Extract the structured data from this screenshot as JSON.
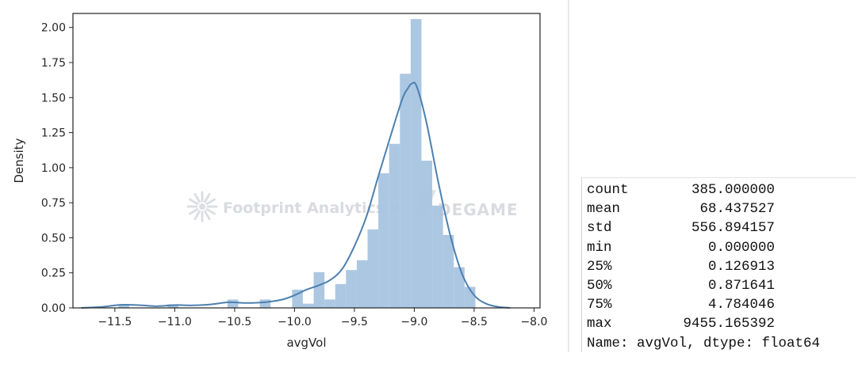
{
  "watermark": {
    "brand": "Footprint Analytics",
    "separator": "×",
    "partner": "DEGAME"
  },
  "chart_data": {
    "type": "histogram",
    "xlabel": "avgVol",
    "ylabel": "Density",
    "xlim": [
      -11.85,
      -7.95
    ],
    "ylim": [
      0,
      2.1
    ],
    "xticks": [
      -11.5,
      -11.0,
      -10.5,
      -10.0,
      -9.5,
      -9.0,
      -8.5,
      -8.0
    ],
    "xtick_labels": [
      "−11.5",
      "−11.0",
      "−10.5",
      "−10.0",
      "−9.5",
      "−9.0",
      "−8.5",
      "−8.0"
    ],
    "yticks": [
      0,
      0.25,
      0.5,
      0.75,
      1.0,
      1.25,
      1.5,
      1.75,
      2.0
    ],
    "ytick_labels": [
      "0.00",
      "0.25",
      "0.50",
      "0.75",
      "1.00",
      "1.25",
      "1.50",
      "1.75",
      "2.00"
    ],
    "grid": false,
    "bar_color": "#a8c4e0",
    "line_color": "#4c80b0",
    "bins": [
      {
        "x0": -11.47,
        "x1": -11.38,
        "density": 0.026
      },
      {
        "x0": -11.06,
        "x1": -10.97,
        "density": 0.026
      },
      {
        "x0": -10.56,
        "x1": -10.47,
        "density": 0.06
      },
      {
        "x0": -10.47,
        "x1": -10.38,
        "density": 0.0
      },
      {
        "x0": -10.38,
        "x1": -10.29,
        "density": 0.0
      },
      {
        "x0": -10.29,
        "x1": -10.2,
        "density": 0.06
      },
      {
        "x0": -10.2,
        "x1": -10.11,
        "density": 0.0
      },
      {
        "x0": -10.11,
        "x1": -10.02,
        "density": 0.0
      },
      {
        "x0": -10.02,
        "x1": -9.93,
        "density": 0.13
      },
      {
        "x0": -9.93,
        "x1": -9.84,
        "density": 0.03
      },
      {
        "x0": -9.84,
        "x1": -9.75,
        "density": 0.255
      },
      {
        "x0": -9.75,
        "x1": -9.66,
        "density": 0.06
      },
      {
        "x0": -9.66,
        "x1": -9.57,
        "density": 0.17
      },
      {
        "x0": -9.57,
        "x1": -9.48,
        "density": 0.27
      },
      {
        "x0": -9.48,
        "x1": -9.39,
        "density": 0.34
      },
      {
        "x0": -9.39,
        "x1": -9.3,
        "density": 0.56
      },
      {
        "x0": -9.3,
        "x1": -9.21,
        "density": 0.96
      },
      {
        "x0": -9.21,
        "x1": -9.12,
        "density": 1.17
      },
      {
        "x0": -9.12,
        "x1": -9.03,
        "density": 1.67
      },
      {
        "x0": -9.03,
        "x1": -8.94,
        "density": 2.06
      },
      {
        "x0": -8.94,
        "x1": -8.85,
        "density": 1.05
      },
      {
        "x0": -8.85,
        "x1": -8.76,
        "density": 0.73
      },
      {
        "x0": -8.76,
        "x1": -8.67,
        "density": 0.52
      },
      {
        "x0": -8.67,
        "x1": -8.58,
        "density": 0.29
      },
      {
        "x0": -8.58,
        "x1": -8.49,
        "density": 0.15
      }
    ],
    "kde": {
      "x": [
        -11.78,
        -11.6,
        -11.45,
        -11.3,
        -11.15,
        -11.0,
        -10.85,
        -10.7,
        -10.55,
        -10.4,
        -10.25,
        -10.1,
        -10.0,
        -9.9,
        -9.8,
        -9.7,
        -9.6,
        -9.5,
        -9.4,
        -9.3,
        -9.2,
        -9.1,
        -9.05,
        -9.02,
        -8.98,
        -8.9,
        -8.8,
        -8.7,
        -8.6,
        -8.5,
        -8.4,
        -8.3,
        -8.2
      ],
      "y": [
        0.0,
        0.008,
        0.022,
        0.02,
        0.012,
        0.02,
        0.018,
        0.025,
        0.04,
        0.035,
        0.04,
        0.06,
        0.09,
        0.13,
        0.16,
        0.2,
        0.28,
        0.44,
        0.65,
        0.94,
        1.22,
        1.49,
        1.57,
        1.6,
        1.58,
        1.33,
        0.9,
        0.52,
        0.24,
        0.09,
        0.03,
        0.008,
        0.0
      ]
    }
  },
  "stats": {
    "rows": [
      {
        "key": "count",
        "value": "385.000000"
      },
      {
        "key": "mean",
        "value": "68.437527"
      },
      {
        "key": "std",
        "value": "556.894157"
      },
      {
        "key": "min",
        "value": "0.000000"
      },
      {
        "key": "25%",
        "value": "0.126913"
      },
      {
        "key": "50%",
        "value": "0.871641"
      },
      {
        "key": "75%",
        "value": "4.784046"
      },
      {
        "key": "max",
        "value": "9455.165392"
      }
    ],
    "footer": "Name: avgVol, dtype: float64"
  }
}
